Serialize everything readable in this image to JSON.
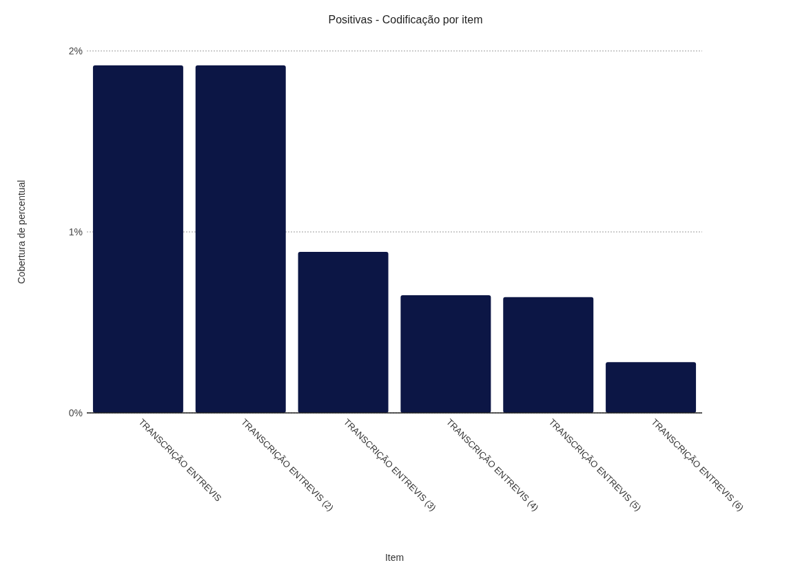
{
  "chart_data": {
    "type": "bar",
    "title": "Positivas - Codificação por item",
    "xlabel": "Item",
    "ylabel": "Cobertura de percentual",
    "categories": [
      "TRANSCRIÇÃO ENTREVIS",
      "TRANSCRIÇÃO ENTREVIS (2)",
      "TRANSCRIÇÃO ENTREVIS (3)",
      "TRANSCRIÇÃO ENTREVIS (4)",
      "TRANSCRIÇÃO ENTREVIS (5)",
      "TRANSCRIÇÃO ENTREVIS (6)"
    ],
    "values": [
      1.92,
      1.92,
      0.89,
      0.65,
      0.64,
      0.28
    ],
    "color": "#0c1645",
    "ylim": [
      0,
      2
    ],
    "yticks": [
      {
        "value": 0,
        "label": "0%"
      },
      {
        "value": 1,
        "label": "1%"
      },
      {
        "value": 2,
        "label": "2%"
      }
    ],
    "grid": "y"
  }
}
